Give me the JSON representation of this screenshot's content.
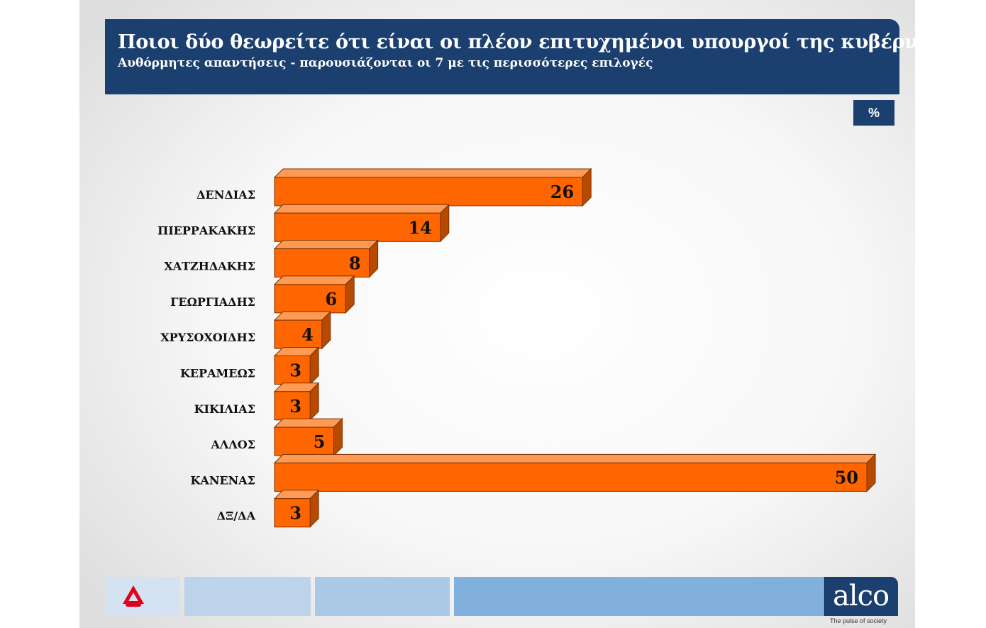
{
  "header": {
    "title": "Ποιοι δύο θεωρείτε ότι είναι οι πλέον επιτυχημένοι υπουργοί της κυβέρνησης;",
    "subtitle": "Αυθόρμητες απαντήσεις - παρουσιάζονται οι 7 με τις περισσότερες επιλογές"
  },
  "unit_badge": "%",
  "footer": {
    "logo_text": "alco",
    "tagline": "The pulse of society"
  },
  "colors": {
    "header_bg": "#1b3f6e",
    "bar_front": "#ff6600",
    "bar_top": "#ff9a55",
    "bar_side": "#b84a00",
    "footer_segments": [
      "#d4e2f1",
      "#bcd3ea",
      "#a9c9e6",
      "#80b0db"
    ],
    "brand_red": "#e1001a"
  },
  "icons": {
    "channel_logo": "alpha-channel-logo-icon"
  },
  "chart_data": {
    "type": "bar",
    "orientation": "horizontal",
    "style": "3d",
    "unit": "%",
    "categories": [
      "ΔΕΝΔΙΑΣ",
      "ΠΙΕΡΡΑΚΑΚΗΣ",
      "ΧΑΤΖΗΔΑΚΗΣ",
      "ΓΕΩΡΓΙΑΔΗΣ",
      "ΧΡΥΣΟΧΟΙΔΗΣ",
      "ΚΕΡΑΜΕΩΣ",
      "ΚΙΚΙΛΙΑΣ",
      "ΑΛΛΟΣ",
      "ΚΑΝΕΝΑΣ",
      "ΔΞ/ΔΑ"
    ],
    "values": [
      26,
      14,
      8,
      6,
      4,
      3,
      3,
      5,
      50,
      3
    ],
    "value_labels": [
      "26",
      "14",
      "8",
      "6",
      "4",
      "3",
      "3",
      "5",
      "50",
      "3"
    ],
    "xlim": [
      0,
      50
    ],
    "grid": false,
    "legend": "none"
  }
}
